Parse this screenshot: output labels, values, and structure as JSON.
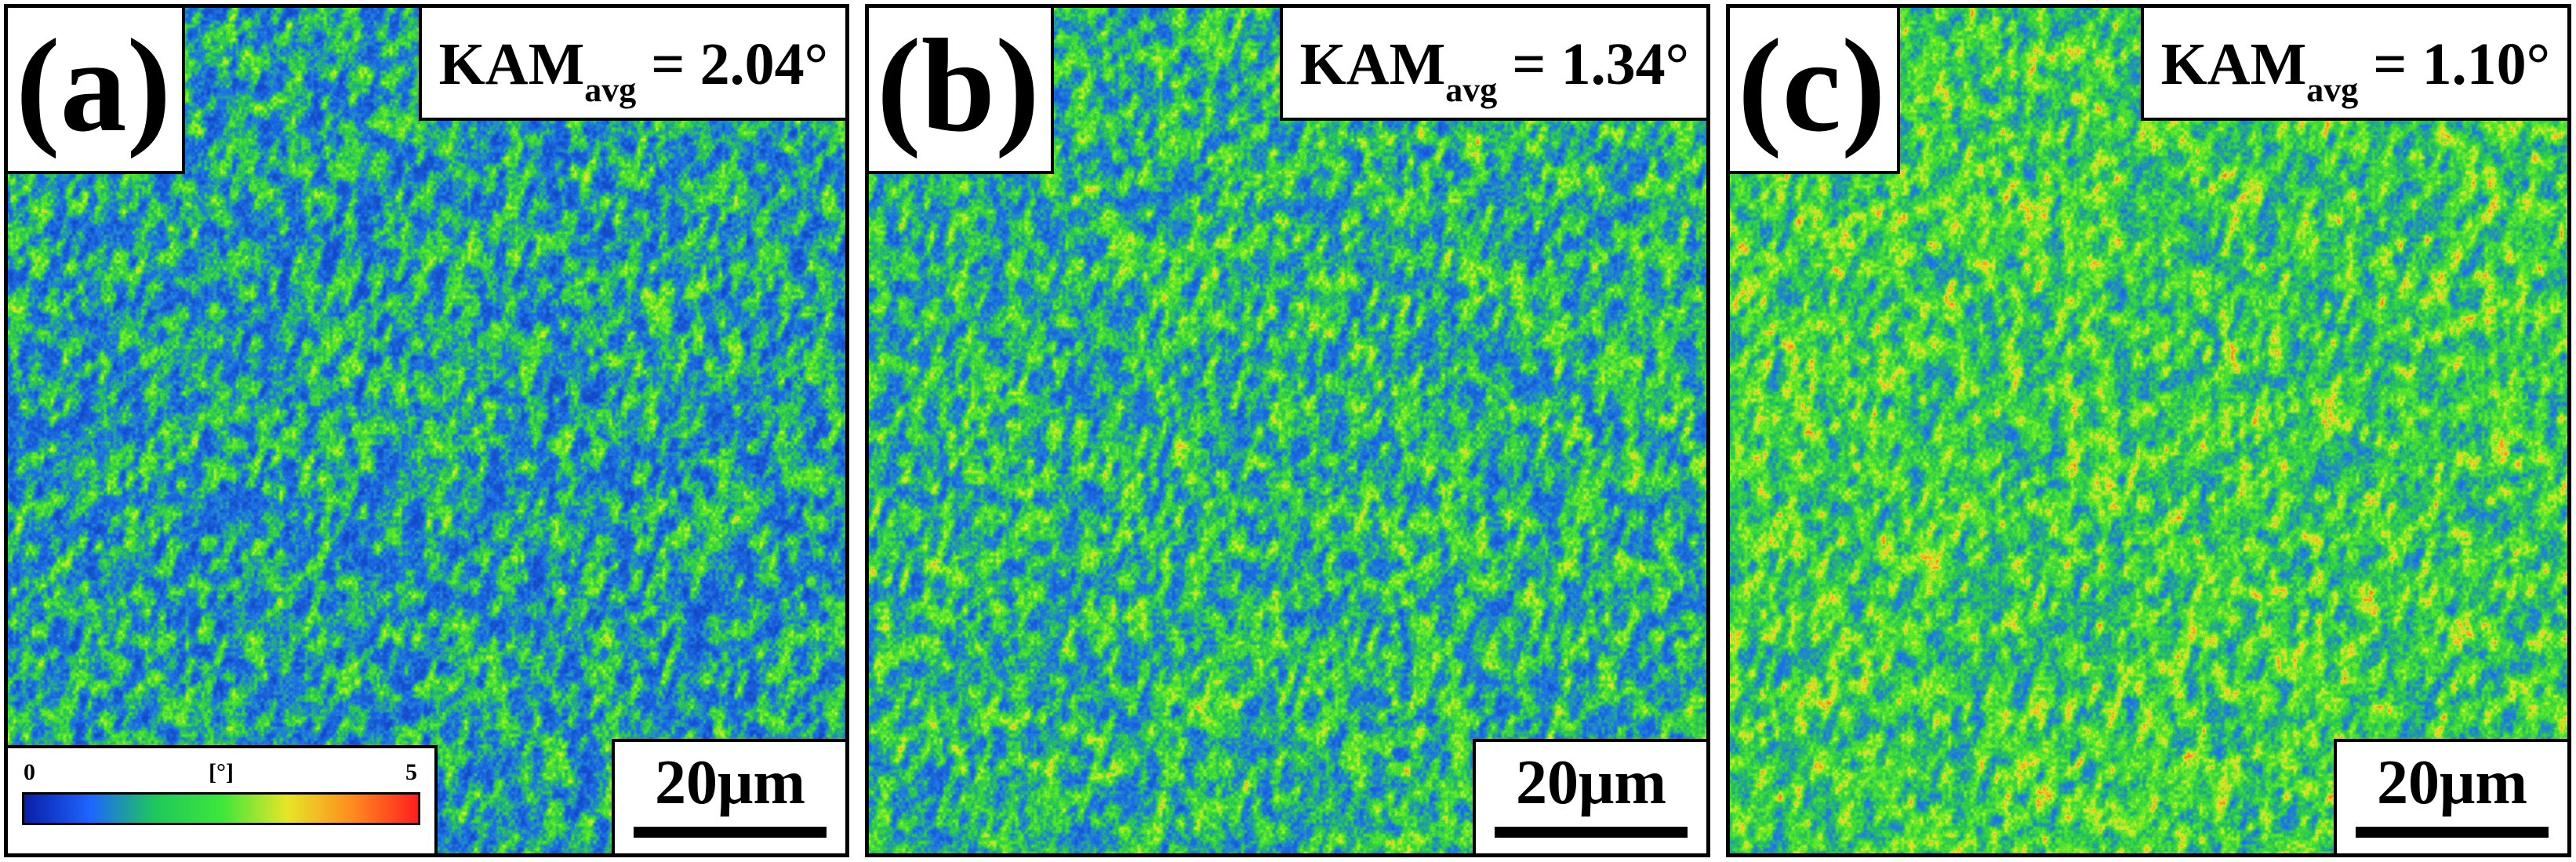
{
  "panels": [
    {
      "label": "(a)",
      "kam_text": "KAM",
      "kam_sub": "avg",
      "kam_value": " = 2.04°",
      "scale_text": "20μm",
      "kam_avg": 2.04
    },
    {
      "label": "(b)",
      "kam_text": "KAM",
      "kam_sub": "avg",
      "kam_value": " = 1.34°",
      "scale_text": "20μm",
      "kam_avg": 1.34
    },
    {
      "label": "(c)",
      "kam_text": "KAM",
      "kam_sub": "avg",
      "kam_value": " = 1.10°",
      "scale_text": "20μm",
      "kam_avg": 1.1
    }
  ],
  "legend": {
    "min": "0",
    "unit": "[°]",
    "max": "5",
    "colors": [
      "#0a1ea8",
      "#1e64ff",
      "#1ec85a",
      "#3ce63c",
      "#e6e628",
      "#ff8c1e",
      "#ff1e1e"
    ]
  },
  "map_colors": {
    "low": "#1448c8",
    "mid_low": "#1e78e6",
    "mid": "#28c850",
    "high": "#5aeb28",
    "very_high": "#e6e628",
    "peak": "#ff7a1e"
  }
}
